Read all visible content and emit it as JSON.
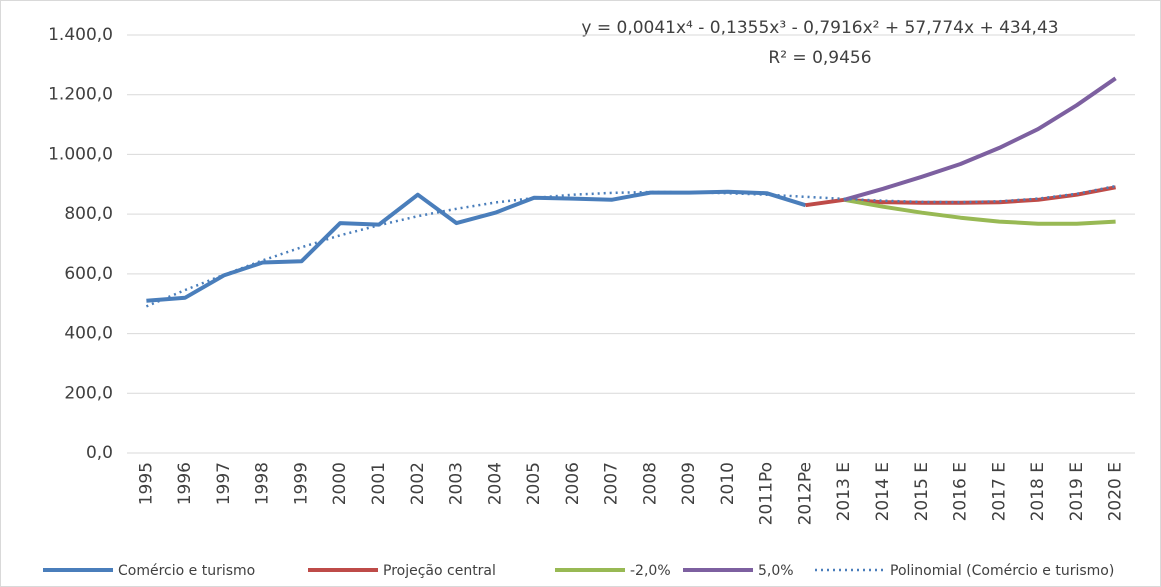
{
  "chart_data": {
    "type": "line",
    "categories": [
      "1995",
      "1996",
      "1997",
      "1998",
      "1999",
      "2000",
      "2001",
      "2002",
      "2003",
      "2004",
      "2005",
      "2006",
      "2007",
      "2008",
      "2009",
      "2010",
      "2011Po",
      "2012Pe",
      "2013 E",
      "2014 E",
      "2015 E",
      "2016 E",
      "2017 E",
      "2018 E",
      "2019 E",
      "2020 E"
    ],
    "series": [
      {
        "name": "Comércio e turismo",
        "color": "#4a7ebb",
        "style": "solid",
        "values": [
          510,
          520,
          595,
          638,
          642,
          770,
          765,
          865,
          770,
          805,
          855,
          852,
          848,
          872,
          872,
          875,
          870,
          830,
          null,
          null,
          null,
          null,
          null,
          null,
          null,
          null
        ]
      },
      {
        "name": "Projeção central",
        "color": "#be4b48",
        "style": "solid",
        "values": [
          null,
          null,
          null,
          null,
          null,
          null,
          null,
          null,
          null,
          null,
          null,
          null,
          null,
          null,
          null,
          null,
          null,
          830,
          848,
          840,
          838,
          838,
          840,
          848,
          865,
          890
        ]
      },
      {
        "name": "-2,0%",
        "color": "#98b954",
        "style": "solid",
        "values": [
          null,
          null,
          null,
          null,
          null,
          null,
          null,
          null,
          null,
          null,
          null,
          null,
          null,
          null,
          null,
          null,
          null,
          null,
          848,
          825,
          805,
          788,
          775,
          768,
          768,
          775
        ]
      },
      {
        "name": "5,0%",
        "color": "#7d60a0",
        "style": "solid",
        "values": [
          null,
          null,
          null,
          null,
          null,
          null,
          null,
          null,
          null,
          null,
          null,
          null,
          null,
          null,
          null,
          null,
          null,
          null,
          848,
          885,
          925,
          968,
          1022,
          1085,
          1165,
          1255
        ]
      },
      {
        "name": "Polinomial (Comércio e turismo)",
        "color": "#4a7ebb",
        "style": "dotted",
        "values": [
          491,
          546,
          597,
          645,
          689,
          729,
          763,
          793,
          818,
          839,
          854,
          865,
          871,
          874,
          873,
          870,
          865,
          858,
          851,
          845,
          841,
          840,
          843,
          852,
          868,
          894
        ]
      }
    ],
    "annotations": [
      "y = 0,0041x⁴ - 0,1355x³ - 0,7916x² + 57,774x + 434,43",
      "R² = 0,9456"
    ],
    "ylim": [
      0,
      1400
    ],
    "yticks": [
      {
        "value": 0,
        "label": "0,0"
      },
      {
        "value": 200,
        "label": "200,0"
      },
      {
        "value": 400,
        "label": "400,0"
      },
      {
        "value": 600,
        "label": "600,0"
      },
      {
        "value": 800,
        "label": "800,0"
      },
      {
        "value": 1000,
        "label": "1.000,0"
      },
      {
        "value": 1200,
        "label": "1.200,0"
      },
      {
        "value": 1400,
        "label": "1.400,0"
      }
    ],
    "grid": true,
    "legend": "bottom"
  }
}
